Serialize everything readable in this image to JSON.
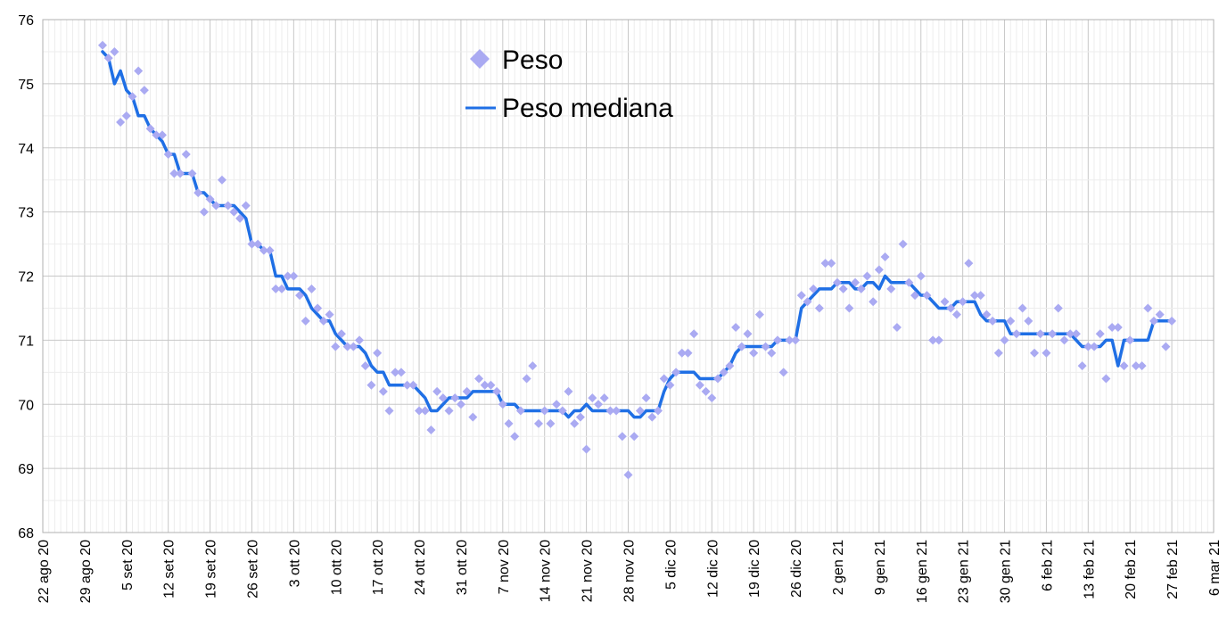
{
  "chart_data": {
    "type": "line",
    "title": "",
    "xlabel": "",
    "ylabel": "",
    "ylim": [
      68,
      76
    ],
    "yticks": [
      68,
      69,
      70,
      71,
      72,
      73,
      74,
      75,
      76
    ],
    "xlim_day_index": [
      0,
      196
    ],
    "xtick_labels": [
      "22 ago 20",
      "29 ago 20",
      "5 set 20",
      "12 set 20",
      "19 set 20",
      "26 set 20",
      "3 ott 20",
      "10 ott 20",
      "17 ott 20",
      "24 ott 20",
      "31 ott 20",
      "7 nov 20",
      "14 nov 20",
      "21 nov 20",
      "28 nov 20",
      "5 dic 20",
      "12 dic 20",
      "19 dic 20",
      "26 dic 20",
      "2 gen 21",
      "9 gen 21",
      "16 gen 21",
      "23 gen 21",
      "30 gen 21",
      "6 feb 21",
      "13 feb 21",
      "20 feb 21",
      "27 feb 21",
      "6 mar 21"
    ],
    "grid": true,
    "legend_position": "top-center",
    "colors": {
      "Peso": "#aaaaf2",
      "Peso mediana": "#1f6fe5"
    },
    "x_start": "2020-09-01",
    "series": [
      {
        "name": "Peso",
        "marker": "diamond",
        "values": [
          75.6,
          75.4,
          75.5,
          74.4,
          74.5,
          74.8,
          75.2,
          74.9,
          74.3,
          74.2,
          74.2,
          73.9,
          73.6,
          73.6,
          73.9,
          73.6,
          73.3,
          73.0,
          73.2,
          73.1,
          73.5,
          73.1,
          73.0,
          72.9,
          73.1,
          72.5,
          72.5,
          72.4,
          72.4,
          71.8,
          71.8,
          72.0,
          72.0,
          71.7,
          71.3,
          71.8,
          71.5,
          71.3,
          71.4,
          70.9,
          71.1,
          70.9,
          70.9,
          71.0,
          70.6,
          70.3,
          70.8,
          70.2,
          69.9,
          70.5,
          70.5,
          70.3,
          70.3,
          69.9,
          69.9,
          69.6,
          70.2,
          70.1,
          69.9,
          70.1,
          70.0,
          70.2,
          69.8,
          70.4,
          70.3,
          70.3,
          70.2,
          70.0,
          69.7,
          69.5,
          69.9,
          70.4,
          70.6,
          69.7,
          69.9,
          69.7,
          70.0,
          69.9,
          70.2,
          69.7,
          69.8,
          69.3,
          70.1,
          70.0,
          70.1,
          69.9,
          69.9,
          69.5,
          68.9,
          69.5,
          69.9,
          70.1,
          69.8,
          69.9,
          70.4,
          70.3,
          70.5,
          70.8,
          70.8,
          71.1,
          70.3,
          70.2,
          70.1,
          70.4,
          70.5,
          70.6,
          71.2,
          70.9,
          71.1,
          70.8,
          71.4,
          70.9,
          70.8,
          71.0,
          70.5,
          71.0,
          71.0,
          71.7,
          71.6,
          71.8,
          71.5,
          72.2,
          72.2,
          71.9,
          71.8,
          71.5,
          71.9,
          71.8,
          72.0,
          71.6,
          72.1,
          72.3,
          71.8,
          71.2,
          72.5,
          71.9,
          71.7,
          72.0,
          71.7,
          71.0,
          71.0,
          71.6,
          71.5,
          71.4,
          71.6,
          72.2,
          71.7,
          71.7,
          71.4,
          71.3,
          70.8,
          71.0,
          71.3,
          71.1,
          71.5,
          71.3,
          70.8,
          71.1,
          70.8,
          71.1,
          71.5,
          71.0,
          71.1,
          71.1,
          70.6,
          70.9,
          70.9,
          71.1,
          70.4,
          71.2,
          71.2,
          70.6,
          71.0,
          70.6,
          70.6,
          71.5,
          71.3,
          71.4,
          70.9,
          71.3
        ]
      },
      {
        "name": "Peso mediana",
        "marker": "none",
        "values": [
          75.5,
          75.4,
          75.0,
          75.2,
          74.9,
          74.8,
          74.5,
          74.5,
          74.3,
          74.2,
          74.1,
          73.9,
          73.9,
          73.6,
          73.6,
          73.6,
          73.3,
          73.3,
          73.2,
          73.1,
          73.1,
          73.1,
          73.1,
          73.0,
          72.9,
          72.5,
          72.5,
          72.4,
          72.4,
          72.0,
          72.0,
          71.8,
          71.8,
          71.8,
          71.7,
          71.5,
          71.4,
          71.3,
          71.3,
          71.1,
          71.0,
          70.9,
          70.9,
          70.9,
          70.8,
          70.6,
          70.5,
          70.5,
          70.3,
          70.3,
          70.3,
          70.3,
          70.3,
          70.2,
          70.1,
          69.9,
          69.9,
          70.0,
          70.1,
          70.1,
          70.1,
          70.1,
          70.2,
          70.2,
          70.2,
          70.2,
          70.2,
          70.0,
          70.0,
          70.0,
          69.9,
          69.9,
          69.9,
          69.9,
          69.9,
          69.9,
          69.9,
          69.9,
          69.8,
          69.9,
          69.9,
          70.0,
          69.9,
          69.9,
          69.9,
          69.9,
          69.9,
          69.9,
          69.9,
          69.8,
          69.8,
          69.9,
          69.9,
          69.9,
          70.2,
          70.4,
          70.5,
          70.5,
          70.5,
          70.5,
          70.4,
          70.4,
          70.4,
          70.4,
          70.5,
          70.6,
          70.8,
          70.9,
          70.9,
          70.9,
          70.9,
          70.9,
          70.9,
          71.0,
          71.0,
          71.0,
          71.0,
          71.5,
          71.6,
          71.7,
          71.8,
          71.8,
          71.8,
          71.9,
          71.9,
          71.9,
          71.8,
          71.8,
          71.9,
          71.9,
          71.8,
          72.0,
          71.9,
          71.9,
          71.9,
          71.9,
          71.8,
          71.7,
          71.7,
          71.6,
          71.5,
          71.5,
          71.5,
          71.6,
          71.6,
          71.6,
          71.6,
          71.4,
          71.3,
          71.3,
          71.3,
          71.3,
          71.1,
          71.1,
          71.1,
          71.1,
          71.1,
          71.1,
          71.1,
          71.1,
          71.1,
          71.1,
          71.1,
          71.0,
          70.9,
          70.9,
          70.9,
          70.9,
          71.0,
          71.0,
          70.6,
          71.0,
          71.0,
          71.0,
          71.0,
          71.0,
          71.3,
          71.3,
          71.3,
          71.3
        ]
      }
    ]
  }
}
